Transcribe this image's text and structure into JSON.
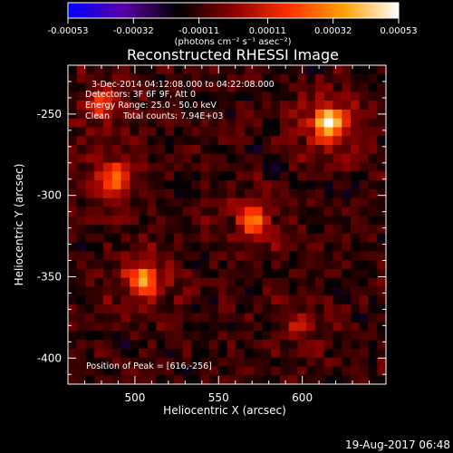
{
  "chart_data": {
    "type": "heatmap",
    "title": "Reconstructed RHESSI Image",
    "colorbar": {
      "ticks": [
        "-0.00053",
        "-0.00032",
        "-0.00011",
        "0.00011",
        "0.00032",
        "0.00053"
      ],
      "range": [
        -0.00053,
        0.00053
      ],
      "unit_label": "(photons cm⁻² s⁻¹ asec⁻²)",
      "colormap": [
        "#0000ff",
        "#5a00a8",
        "#000000",
        "#8a0000",
        "#ff3000",
        "#ffa000",
        "#ffffff"
      ]
    },
    "xlabel": "Heliocentric X (arcsec)",
    "ylabel": "Heliocentric Y (arcsec)",
    "xlim": [
      460,
      650
    ],
    "ylim": [
      -416,
      -220
    ],
    "xticks": [
      "500",
      "550",
      "600"
    ],
    "yticks": [
      "-250",
      "-300",
      "-350",
      "-400"
    ],
    "annotations": {
      "time_range": "3-Dec-2014 04:12:08.000 to 04:22:08.000",
      "detectors": "Detectors: 3F 6F 9F, Att 0",
      "energy": "Energy Range: 25.0 - 50.0 keV",
      "clean": "Clean     Total counts: 7.94E+03",
      "peak": "Position of Peak = [616,-256]"
    },
    "peak": [
      616,
      -256
    ],
    "sources": [
      {
        "x": 616,
        "y": -256,
        "intensity": 1.0
      },
      {
        "x": 505,
        "y": -352,
        "intensity": 0.78
      },
      {
        "x": 488,
        "y": -290,
        "intensity": 0.62
      },
      {
        "x": 570,
        "y": -315,
        "intensity": 0.55
      },
      {
        "x": 480,
        "y": -245,
        "intensity": 0.5
      },
      {
        "x": 600,
        "y": -380,
        "intensity": 0.25
      }
    ]
  },
  "footer": {
    "timestamp": "19-Aug-2017 06:48"
  }
}
